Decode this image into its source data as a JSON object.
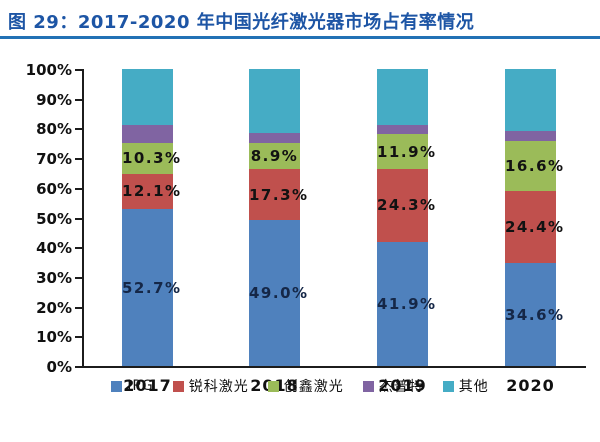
{
  "header": {
    "title": "图 29：2017-2020 年中国光纤激光器市场占有率情况",
    "title_color": "#1D55A5",
    "rule_color": "#2271B5"
  },
  "chart_data": {
    "type": "bar",
    "stacked": true,
    "percent_stacked": true,
    "title": "图 29：2017-2020 年中国光纤激光器市场占有率情况",
    "categories": [
      "2017",
      "2018",
      "2019",
      "2020"
    ],
    "series": [
      {
        "name": "IPG",
        "color": "#4F81BD",
        "values": [
          52.7,
          49.0,
          41.9,
          34.6
        ],
        "labels": [
          "52.7%",
          "49.0%",
          "41.9%",
          "34.6%"
        ],
        "label_color": "#152747"
      },
      {
        "name": "锐科激光",
        "color": "#C0504D",
        "values": [
          12.1,
          17.3,
          24.3,
          24.4
        ],
        "labels": [
          "12.1%",
          "17.3%",
          "24.3%",
          "24.4%"
        ],
        "label_color": "#121212"
      },
      {
        "name": "创鑫激光",
        "color": "#9BBB59",
        "values": [
          10.3,
          8.9,
          11.9,
          16.6
        ],
        "labels": [
          "10.3%",
          "8.9%",
          "11.9%",
          "16.6%"
        ],
        "label_color": "#121212"
      },
      {
        "name": "杰普特",
        "color": "#8064A2",
        "values": [
          6.0,
          3.4,
          3.0,
          3.6
        ],
        "labels": [
          null,
          null,
          null,
          null
        ],
        "label_color": "#121212"
      },
      {
        "name": "其他",
        "color": "#45ACC5",
        "values": [
          18.9,
          21.4,
          18.9,
          20.8
        ],
        "labels": [
          null,
          null,
          null,
          null
        ],
        "label_color": "#121212"
      }
    ],
    "y_axis": {
      "min": 0,
      "max": 100,
      "step": 10,
      "tick_labels": [
        "0%",
        "10%",
        "20%",
        "30%",
        "40%",
        "50%",
        "60%",
        "70%",
        "80%",
        "90%",
        "100%"
      ]
    },
    "x_axis": {
      "tick_labels": [
        "2017",
        "2018",
        "2019",
        "2020"
      ]
    },
    "legend_position": "bottom",
    "gridlines": false
  }
}
